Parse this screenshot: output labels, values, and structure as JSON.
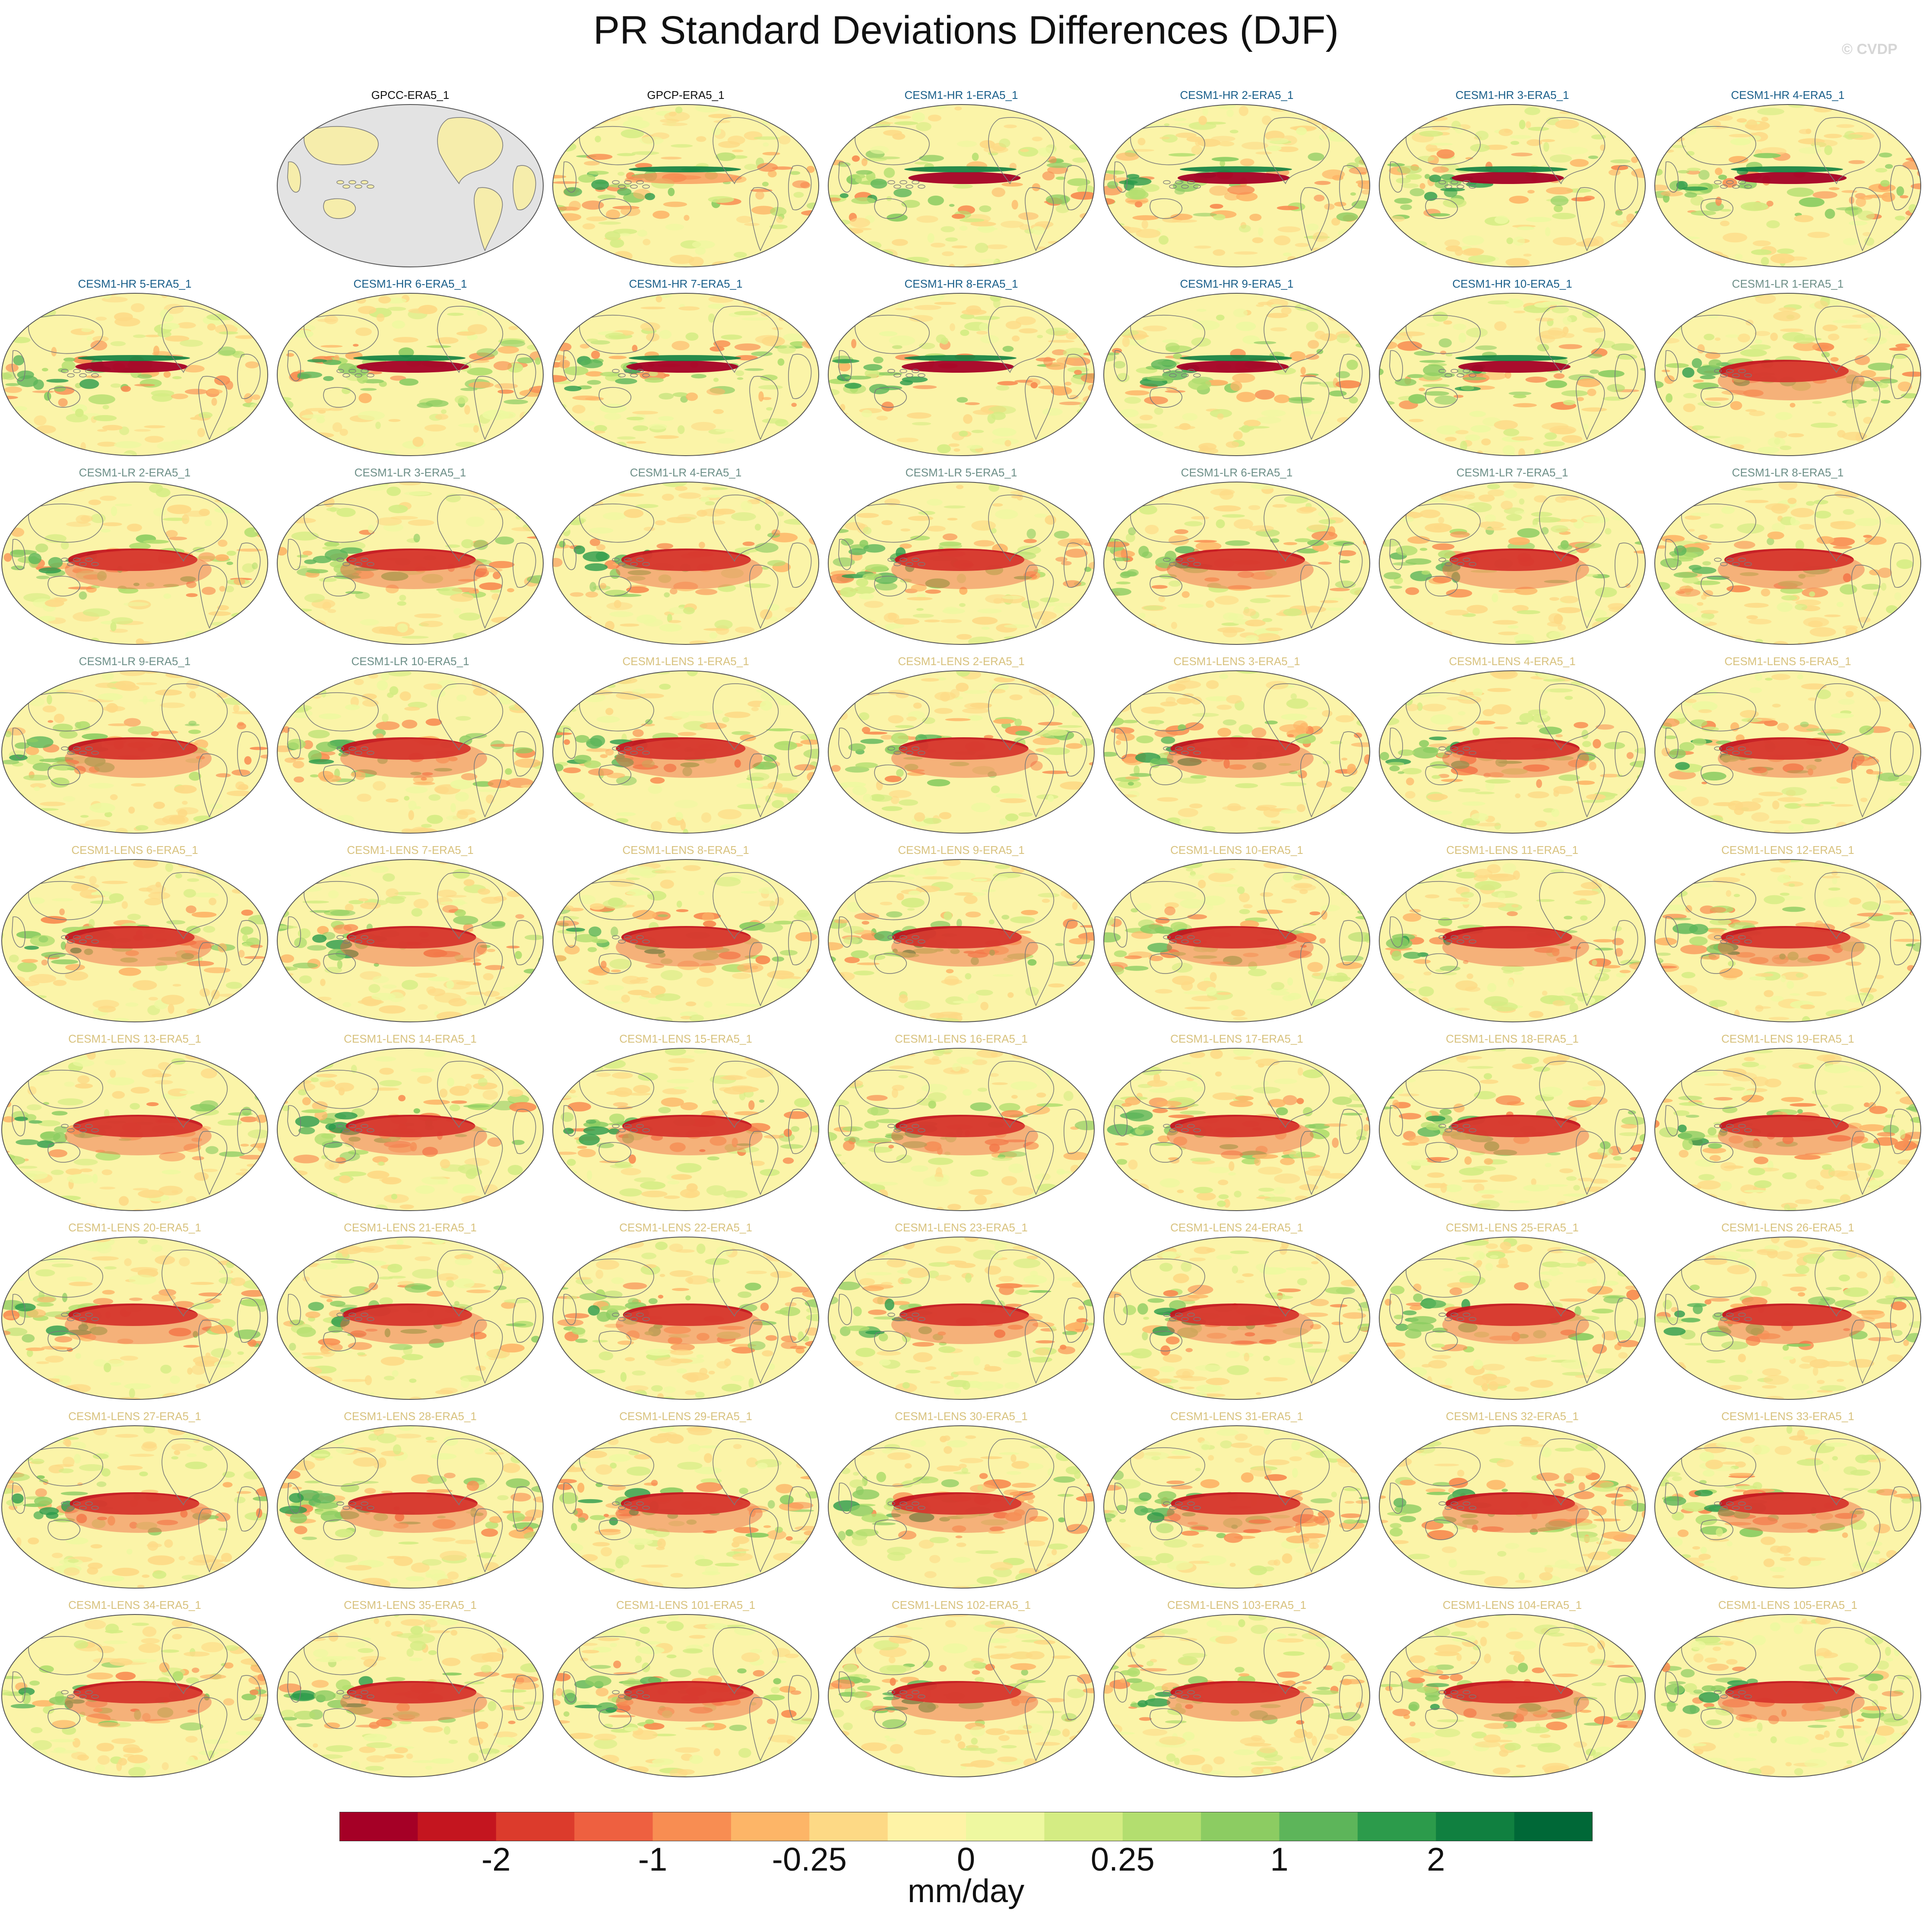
{
  "title": "PR Standard Deviations Differences (DJF)",
  "credit": "© CVDP",
  "units": "mm/day",
  "colorbar": {
    "colors": [
      "#a50026",
      "#c4151f",
      "#dc3b2c",
      "#ee6040",
      "#f88d52",
      "#fdb567",
      "#fdd985",
      "#fef3a6",
      "#eef8a0",
      "#d4ec83",
      "#b3de6f",
      "#8ccc62",
      "#5db55a",
      "#2c9b4b",
      "#108040",
      "#006837"
    ],
    "labels": [
      "-2",
      "-1",
      "-0.25",
      "0",
      "0.25",
      "1",
      "2"
    ],
    "label_boundaries": [
      2,
      4,
      6,
      8,
      10,
      12,
      14
    ]
  },
  "panels": [
    {
      "label": "GPCC-ERA5_1",
      "color": "#111111"
    },
    {
      "label": "GPCP-ERA5_1",
      "color": "#111111"
    },
    {
      "label": "CESM1-HR 1-ERA5_1",
      "color": "#1a5f8a"
    },
    {
      "label": "CESM1-HR 2-ERA5_1",
      "color": "#1a5f8a"
    },
    {
      "label": "CESM1-HR 3-ERA5_1",
      "color": "#1a5f8a"
    },
    {
      "label": "CESM1-HR 4-ERA5_1",
      "color": "#1a5f8a"
    },
    {
      "label": "CESM1-HR 5-ERA5_1",
      "color": "#1a5f8a"
    },
    {
      "label": "CESM1-HR 6-ERA5_1",
      "color": "#1a5f8a"
    },
    {
      "label": "CESM1-HR 7-ERA5_1",
      "color": "#1a5f8a"
    },
    {
      "label": "CESM1-HR 8-ERA5_1",
      "color": "#1a5f8a"
    },
    {
      "label": "CESM1-HR 9-ERA5_1",
      "color": "#1a5f8a"
    },
    {
      "label": "CESM1-HR 10-ERA5_1",
      "color": "#1a5f8a"
    },
    {
      "label": "CESM1-LR 1-ERA5_1",
      "color": "#6d8f88"
    },
    {
      "label": "CESM1-LR 2-ERA5_1",
      "color": "#6d8f88"
    },
    {
      "label": "CESM1-LR 3-ERA5_1",
      "color": "#6d8f88"
    },
    {
      "label": "CESM1-LR 4-ERA5_1",
      "color": "#6d8f88"
    },
    {
      "label": "CESM1-LR 5-ERA5_1",
      "color": "#6d8f88"
    },
    {
      "label": "CESM1-LR 6-ERA5_1",
      "color": "#6d8f88"
    },
    {
      "label": "CESM1-LR 7-ERA5_1",
      "color": "#6d8f88"
    },
    {
      "label": "CESM1-LR 8-ERA5_1",
      "color": "#6d8f88"
    },
    {
      "label": "CESM1-LR 9-ERA5_1",
      "color": "#6d8f88"
    },
    {
      "label": "CESM1-LR 10-ERA5_1",
      "color": "#6d8f88"
    },
    {
      "label": "CESM1-LENS 1-ERA5_1",
      "color": "#d8c27e"
    },
    {
      "label": "CESM1-LENS 2-ERA5_1",
      "color": "#d8c27e"
    },
    {
      "label": "CESM1-LENS 3-ERA5_1",
      "color": "#d8c27e"
    },
    {
      "label": "CESM1-LENS 4-ERA5_1",
      "color": "#d8c27e"
    },
    {
      "label": "CESM1-LENS 5-ERA5_1",
      "color": "#d8c27e"
    },
    {
      "label": "CESM1-LENS 6-ERA5_1",
      "color": "#d8c27e"
    },
    {
      "label": "CESM1-LENS 7-ERA5_1",
      "color": "#d8c27e"
    },
    {
      "label": "CESM1-LENS 8-ERA5_1",
      "color": "#d8c27e"
    },
    {
      "label": "CESM1-LENS 9-ERA5_1",
      "color": "#d8c27e"
    },
    {
      "label": "CESM1-LENS 10-ERA5_1",
      "color": "#d8c27e"
    },
    {
      "label": "CESM1-LENS 11-ERA5_1",
      "color": "#d8c27e"
    },
    {
      "label": "CESM1-LENS 12-ERA5_1",
      "color": "#d8c27e"
    },
    {
      "label": "CESM1-LENS 13-ERA5_1",
      "color": "#d8c27e"
    },
    {
      "label": "CESM1-LENS 14-ERA5_1",
      "color": "#d8c27e"
    },
    {
      "label": "CESM1-LENS 15-ERA5_1",
      "color": "#d8c27e"
    },
    {
      "label": "CESM1-LENS 16-ERA5_1",
      "color": "#d8c27e"
    },
    {
      "label": "CESM1-LENS 17-ERA5_1",
      "color": "#d8c27e"
    },
    {
      "label": "CESM1-LENS 18-ERA5_1",
      "color": "#d8c27e"
    },
    {
      "label": "CESM1-LENS 19-ERA5_1",
      "color": "#d8c27e"
    },
    {
      "label": "CESM1-LENS 20-ERA5_1",
      "color": "#d8c27e"
    },
    {
      "label": "CESM1-LENS 21-ERA5_1",
      "color": "#d8c27e"
    },
    {
      "label": "CESM1-LENS 22-ERA5_1",
      "color": "#d8c27e"
    },
    {
      "label": "CESM1-LENS 23-ERA5_1",
      "color": "#d8c27e"
    },
    {
      "label": "CESM1-LENS 24-ERA5_1",
      "color": "#d8c27e"
    },
    {
      "label": "CESM1-LENS 25-ERA5_1",
      "color": "#d8c27e"
    },
    {
      "label": "CESM1-LENS 26-ERA5_1",
      "color": "#d8c27e"
    },
    {
      "label": "CESM1-LENS 27-ERA5_1",
      "color": "#d8c27e"
    },
    {
      "label": "CESM1-LENS 28-ERA5_1",
      "color": "#d8c27e"
    },
    {
      "label": "CESM1-LENS 29-ERA5_1",
      "color": "#d8c27e"
    },
    {
      "label": "CESM1-LENS 30-ERA5_1",
      "color": "#d8c27e"
    },
    {
      "label": "CESM1-LENS 31-ERA5_1",
      "color": "#d8c27e"
    },
    {
      "label": "CESM1-LENS 32-ERA5_1",
      "color": "#d8c27e"
    },
    {
      "label": "CESM1-LENS 33-ERA5_1",
      "color": "#d8c27e"
    },
    {
      "label": "CESM1-LENS 34-ERA5_1",
      "color": "#d8c27e"
    },
    {
      "label": "CESM1-LENS 35-ERA5_1",
      "color": "#d8c27e"
    },
    {
      "label": "CESM1-LENS 101-ERA5_1",
      "color": "#d8c27e"
    },
    {
      "label": "CESM1-LENS 102-ERA5_1",
      "color": "#d8c27e"
    },
    {
      "label": "CESM1-LENS 103-ERA5_1",
      "color": "#d8c27e"
    },
    {
      "label": "CESM1-LENS 104-ERA5_1",
      "color": "#d8c27e"
    },
    {
      "label": "CESM1-LENS 105-ERA5_1",
      "color": "#d8c27e"
    }
  ]
}
